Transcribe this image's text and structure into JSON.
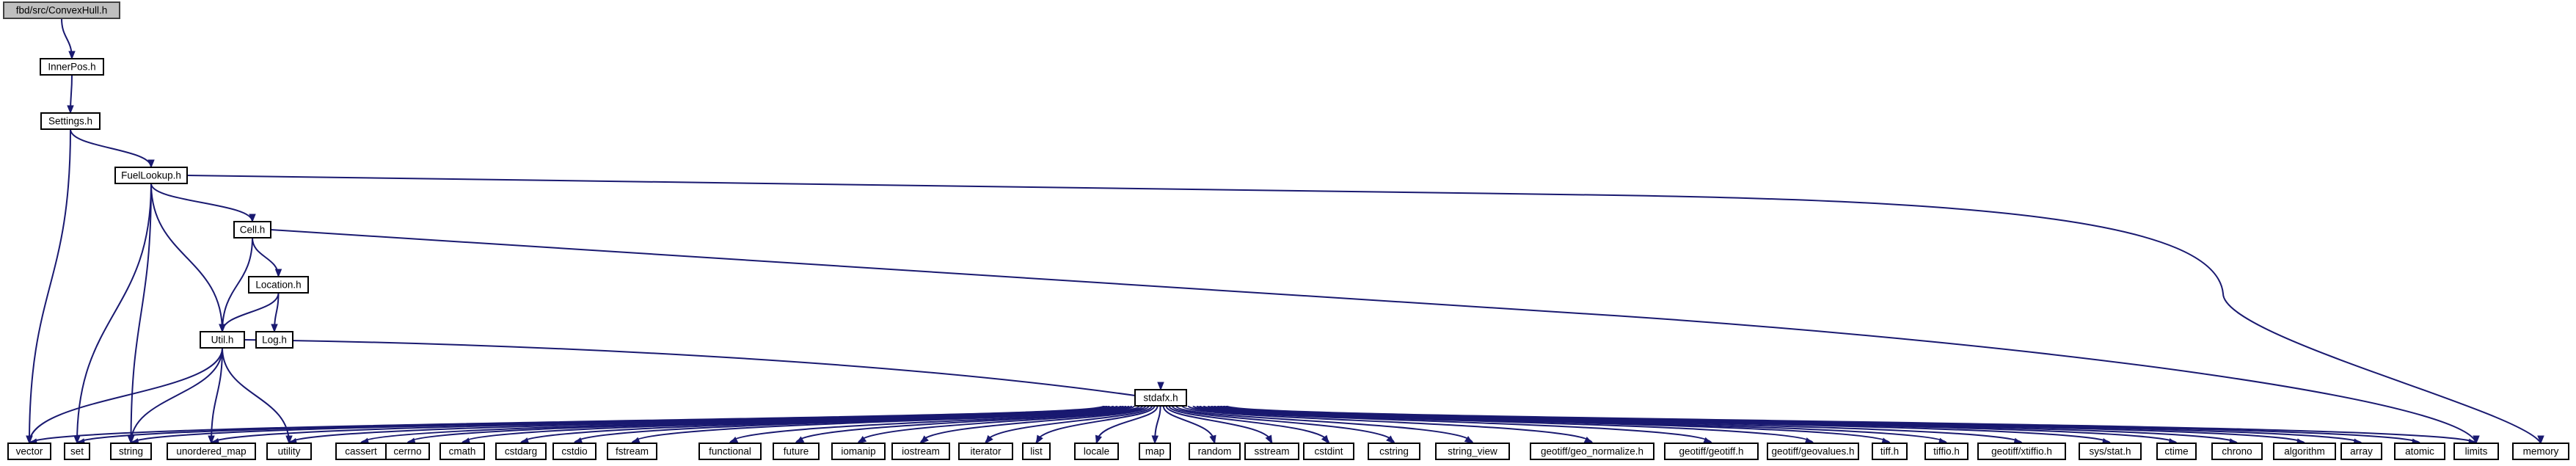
{
  "colors": {
    "edge": "#191970",
    "root_fill": "#bfbfbf",
    "node_fill": "#ffffff",
    "node_border": "#000000"
  },
  "nodes": [
    {
      "id": "convexhull",
      "label": "fbd/src/ConvexHull.h",
      "root": true
    },
    {
      "id": "innerpos",
      "label": "InnerPos.h"
    },
    {
      "id": "settings",
      "label": "Settings.h"
    },
    {
      "id": "fuellookup",
      "label": "FuelLookup.h"
    },
    {
      "id": "cell",
      "label": "Cell.h"
    },
    {
      "id": "location",
      "label": "Location.h"
    },
    {
      "id": "util",
      "label": "Util.h"
    },
    {
      "id": "log",
      "label": "Log.h"
    },
    {
      "id": "stdafx",
      "label": "stdafx.h"
    },
    {
      "id": "vector",
      "label": "vector"
    },
    {
      "id": "set",
      "label": "set"
    },
    {
      "id": "string",
      "label": "string"
    },
    {
      "id": "unordered_map",
      "label": "unordered_map"
    },
    {
      "id": "utility",
      "label": "utility"
    },
    {
      "id": "cassert",
      "label": "cassert"
    },
    {
      "id": "cerrno",
      "label": "cerrno"
    },
    {
      "id": "cmath",
      "label": "cmath"
    },
    {
      "id": "cstdarg",
      "label": "cstdarg"
    },
    {
      "id": "cstdio",
      "label": "cstdio"
    },
    {
      "id": "fstream",
      "label": "fstream"
    },
    {
      "id": "functional",
      "label": "functional"
    },
    {
      "id": "future",
      "label": "future"
    },
    {
      "id": "iomanip",
      "label": "iomanip"
    },
    {
      "id": "iostream",
      "label": "iostream"
    },
    {
      "id": "iterator",
      "label": "iterator"
    },
    {
      "id": "list",
      "label": "list"
    },
    {
      "id": "locale",
      "label": "locale"
    },
    {
      "id": "map",
      "label": "map"
    },
    {
      "id": "random",
      "label": "random"
    },
    {
      "id": "sstream",
      "label": "sstream"
    },
    {
      "id": "cstdint",
      "label": "cstdint"
    },
    {
      "id": "cstring",
      "label": "cstring"
    },
    {
      "id": "string_view",
      "label": "string_view"
    },
    {
      "id": "geo_normalize",
      "label": "geotiff/geo_normalize.h"
    },
    {
      "id": "geotiff",
      "label": "geotiff/geotiff.h"
    },
    {
      "id": "geovalues",
      "label": "geotiff/geovalues.h"
    },
    {
      "id": "tiff",
      "label": "tiff.h"
    },
    {
      "id": "tiffio",
      "label": "tiffio.h"
    },
    {
      "id": "xtiffio",
      "label": "geotiff/xtiffio.h"
    },
    {
      "id": "sysstat",
      "label": "sys/stat.h"
    },
    {
      "id": "ctime",
      "label": "ctime"
    },
    {
      "id": "chrono",
      "label": "chrono"
    },
    {
      "id": "algorithm",
      "label": "algorithm"
    },
    {
      "id": "array",
      "label": "array"
    },
    {
      "id": "atomic",
      "label": "atomic"
    },
    {
      "id": "limits",
      "label": "limits"
    },
    {
      "id": "memory",
      "label": "memory"
    }
  ],
  "edges": [
    [
      "convexhull",
      "innerpos"
    ],
    [
      "innerpos",
      "settings"
    ],
    [
      "settings",
      "vector"
    ],
    [
      "settings",
      "fuellookup"
    ],
    [
      "fuellookup",
      "set"
    ],
    [
      "fuellookup",
      "string"
    ],
    [
      "fuellookup",
      "util"
    ],
    [
      "fuellookup",
      "cell"
    ],
    [
      "fuellookup",
      "memory"
    ],
    [
      "cell",
      "util"
    ],
    [
      "cell",
      "location"
    ],
    [
      "cell",
      "limits"
    ],
    [
      "location",
      "util"
    ],
    [
      "location",
      "log"
    ],
    [
      "util",
      "vector"
    ],
    [
      "util",
      "string"
    ],
    [
      "util",
      "unordered_map"
    ],
    [
      "util",
      "utility"
    ],
    [
      "util",
      "stdafx"
    ],
    [
      "stdafx",
      "vector"
    ],
    [
      "stdafx",
      "set"
    ],
    [
      "stdafx",
      "string"
    ],
    [
      "stdafx",
      "unordered_map"
    ],
    [
      "stdafx",
      "utility"
    ],
    [
      "stdafx",
      "cassert"
    ],
    [
      "stdafx",
      "cerrno"
    ],
    [
      "stdafx",
      "cmath"
    ],
    [
      "stdafx",
      "cstdarg"
    ],
    [
      "stdafx",
      "cstdio"
    ],
    [
      "stdafx",
      "fstream"
    ],
    [
      "stdafx",
      "functional"
    ],
    [
      "stdafx",
      "future"
    ],
    [
      "stdafx",
      "iomanip"
    ],
    [
      "stdafx",
      "iostream"
    ],
    [
      "stdafx",
      "iterator"
    ],
    [
      "stdafx",
      "list"
    ],
    [
      "stdafx",
      "locale"
    ],
    [
      "stdafx",
      "map"
    ],
    [
      "stdafx",
      "random"
    ],
    [
      "stdafx",
      "sstream"
    ],
    [
      "stdafx",
      "cstdint"
    ],
    [
      "stdafx",
      "cstring"
    ],
    [
      "stdafx",
      "string_view"
    ],
    [
      "stdafx",
      "geo_normalize"
    ],
    [
      "stdafx",
      "geotiff"
    ],
    [
      "stdafx",
      "geovalues"
    ],
    [
      "stdafx",
      "tiff"
    ],
    [
      "stdafx",
      "tiffio"
    ],
    [
      "stdafx",
      "xtiffio"
    ],
    [
      "stdafx",
      "sysstat"
    ],
    [
      "stdafx",
      "ctime"
    ],
    [
      "stdafx",
      "chrono"
    ],
    [
      "stdafx",
      "algorithm"
    ],
    [
      "stdafx",
      "array"
    ],
    [
      "stdafx",
      "atomic"
    ],
    [
      "stdafx",
      "limits"
    ]
  ]
}
